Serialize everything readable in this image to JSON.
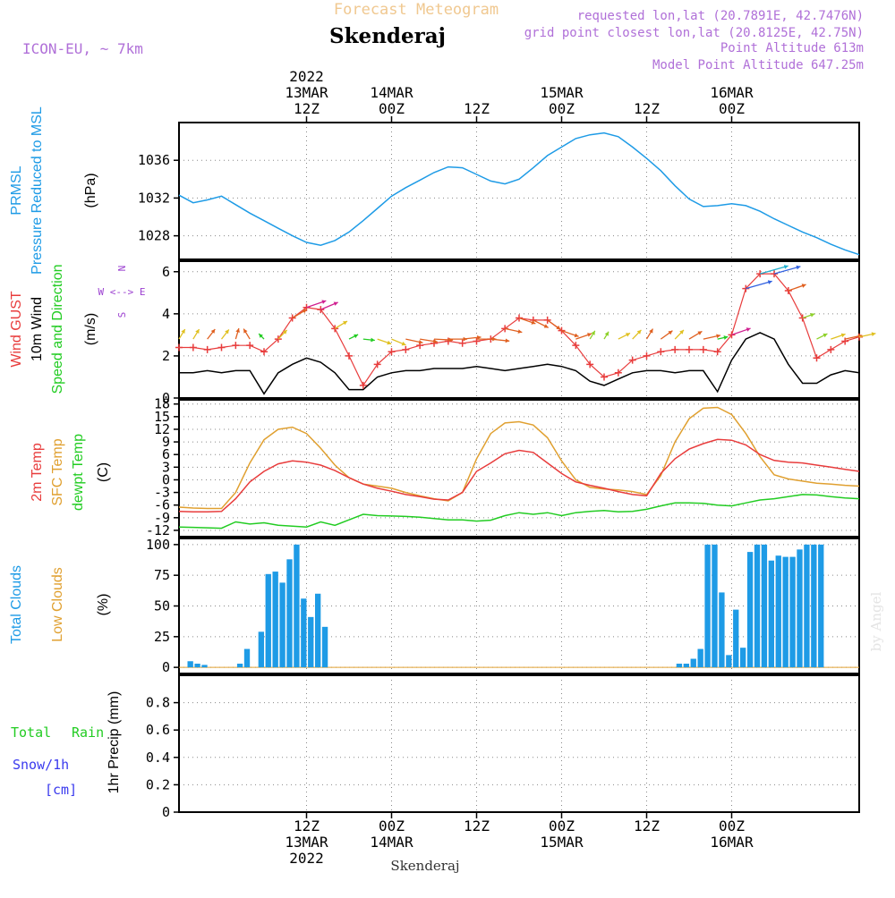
{
  "header": {
    "suptitle": "Forecast Meteogram",
    "location": "Skenderaj",
    "model": "ICON-EU, ~ 7km",
    "requested": "requested lon,lat (20.7891E, 42.7476N)",
    "gridpoint": "grid point closest lon,lat (20.8125E, 42.75N)",
    "point_alt": "Point Altitude 613m",
    "model_alt": "Model Point Altitude 647.25m",
    "footer": "Skenderaj",
    "credit": "by Angel"
  },
  "time_axis": {
    "units": "hours since 2022-03-12 18Z",
    "range": [
      0,
      96
    ],
    "top_ticks": [
      {
        "t": 18,
        "lines": [
          "2022",
          "13MAR",
          "12Z"
        ]
      },
      {
        "t": 30,
        "lines": [
          "14MAR",
          "00Z"
        ]
      },
      {
        "t": 42,
        "lines": [
          "12Z"
        ]
      },
      {
        "t": 54,
        "lines": [
          "15MAR",
          "00Z"
        ]
      },
      {
        "t": 66,
        "lines": [
          "12Z"
        ]
      },
      {
        "t": 78,
        "lines": [
          "16MAR",
          "00Z"
        ]
      }
    ],
    "bottom_ticks": [
      {
        "t": 18,
        "lines": [
          "12Z",
          "13MAR",
          "2022"
        ]
      },
      {
        "t": 30,
        "lines": [
          "00Z",
          "14MAR"
        ]
      },
      {
        "t": 42,
        "lines": [
          "12Z"
        ]
      },
      {
        "t": 54,
        "lines": [
          "00Z",
          "15MAR"
        ]
      },
      {
        "t": 66,
        "lines": [
          "12Z"
        ]
      },
      {
        "t": 78,
        "lines": [
          "00Z",
          "16MAR"
        ]
      }
    ]
  },
  "colors": {
    "pressure": "#1e9be6",
    "gust": "#e83c3c",
    "wind": "#000000",
    "direction": "#22cc22",
    "temp2m": "#e83c3c",
    "sfc": "#e0a030",
    "dewpt": "#22cc22",
    "clouds": "#1e9be6",
    "lowclouds": "#e0a030",
    "compass": "#9b3fd0",
    "snow": "#3a3aee"
  },
  "chart_data": [
    {
      "id": "pressure",
      "type": "line",
      "ylabels": [
        "PRMSL",
        "Pressure Reduced to MSL",
        "(hPa)"
      ],
      "ylim": [
        1025.5,
        1040
      ],
      "yticks": [
        1028,
        1032,
        1036
      ],
      "x": [
        0,
        2,
        4,
        6,
        8,
        10,
        12,
        14,
        16,
        18,
        20,
        22,
        24,
        26,
        28,
        30,
        32,
        34,
        36,
        38,
        40,
        42,
        44,
        46,
        48,
        50,
        52,
        54,
        56,
        58,
        60,
        62,
        64,
        66,
        68,
        70,
        72,
        74,
        76,
        78,
        80,
        82,
        84,
        86,
        88,
        90,
        92,
        94,
        96
      ],
      "values": [
        1032.3,
        1031.5,
        1031.8,
        1032.2,
        1031.3,
        1030.4,
        1029.6,
        1028.8,
        1028.0,
        1027.3,
        1027.0,
        1027.5,
        1028.4,
        1029.6,
        1030.9,
        1032.2,
        1033.1,
        1033.9,
        1034.7,
        1035.3,
        1035.2,
        1034.5,
        1033.8,
        1033.5,
        1034.0,
        1035.2,
        1036.5,
        1037.4,
        1038.3,
        1038.7,
        1038.9,
        1038.5,
        1037.4,
        1036.2,
        1034.9,
        1033.3,
        1031.9,
        1031.1,
        1031.2,
        1031.4,
        1031.2,
        1030.6,
        1029.8,
        1029.1,
        1028.4,
        1027.8,
        1027.1,
        1026.5,
        1026.0
      ]
    },
    {
      "id": "wind",
      "type": "line",
      "ylabels": [
        "Wind GUST",
        "10m Wind",
        "Speed and Direction",
        "(m/s)"
      ],
      "ylim": [
        0,
        6.5
      ],
      "yticks": [
        0,
        2,
        4,
        6
      ],
      "compass": [
        "N",
        "W <--> E",
        "S"
      ],
      "x": [
        0,
        2,
        4,
        6,
        8,
        10,
        12,
        14,
        16,
        18,
        20,
        22,
        24,
        26,
        28,
        30,
        32,
        34,
        36,
        38,
        40,
        42,
        44,
        46,
        48,
        50,
        52,
        54,
        56,
        58,
        60,
        62,
        64,
        66,
        68,
        70,
        72,
        74,
        76,
        78,
        80,
        82,
        84,
        86,
        88,
        90,
        92,
        94,
        96
      ],
      "series": [
        {
          "name": "Wind GUST",
          "values": [
            2.4,
            2.4,
            2.3,
            2.4,
            2.5,
            2.5,
            2.2,
            2.8,
            3.8,
            4.3,
            4.2,
            3.3,
            2.0,
            0.6,
            1.6,
            2.2,
            2.3,
            2.5,
            2.6,
            2.7,
            2.6,
            2.7,
            2.8,
            3.3,
            3.8,
            3.7,
            3.7,
            3.2,
            2.5,
            1.6,
            1.0,
            1.2,
            1.8,
            2.0,
            2.2,
            2.3,
            2.3,
            2.3,
            2.2,
            3.0,
            5.2,
            5.9,
            5.9,
            5.1,
            3.8,
            1.9,
            2.3,
            2.7,
            2.9
          ]
        },
        {
          "name": "10m Wind",
          "values": [
            1.2,
            1.2,
            1.3,
            1.2,
            1.3,
            1.3,
            0.2,
            1.2,
            1.6,
            1.9,
            1.7,
            1.2,
            0.4,
            0.4,
            1.0,
            1.2,
            1.3,
            1.3,
            1.4,
            1.4,
            1.4,
            1.5,
            1.4,
            1.3,
            1.4,
            1.5,
            1.6,
            1.5,
            1.3,
            0.8,
            0.6,
            0.9,
            1.2,
            1.3,
            1.3,
            1.2,
            1.3,
            1.3,
            0.3,
            1.8,
            2.8,
            3.1,
            2.8,
            1.6,
            0.7,
            0.7,
            1.1,
            1.3,
            1.2
          ]
        },
        {
          "name": "Direction",
          "values": [
            200,
            200,
            205,
            205,
            190,
            160,
            150,
            210,
            225,
            240,
            235,
            225,
            230,
            280,
            300,
            305,
            290,
            285,
            275,
            270,
            260,
            270,
            280,
            290,
            300,
            310,
            320,
            300,
            240,
            200,
            200,
            230,
            210,
            200,
            220,
            210,
            225,
            250,
            250,
            240,
            245,
            245,
            245,
            240,
            240,
            230,
            240,
            250,
            250
          ]
        }
      ]
    },
    {
      "id": "temperature",
      "type": "line",
      "ylabels": [
        "2m Temp",
        "SFC Temp",
        "dewpt Temp",
        "(C)"
      ],
      "ylim": [
        -13.5,
        19
      ],
      "yticks": [
        -12,
        -9,
        -6,
        -3,
        0,
        3,
        6,
        9,
        12,
        15,
        18
      ],
      "x": [
        0,
        2,
        4,
        6,
        8,
        10,
        12,
        14,
        16,
        18,
        20,
        22,
        24,
        26,
        28,
        30,
        32,
        34,
        36,
        38,
        40,
        42,
        44,
        46,
        48,
        50,
        52,
        54,
        56,
        58,
        60,
        62,
        64,
        66,
        68,
        70,
        72,
        74,
        76,
        78,
        80,
        82,
        84,
        86,
        88,
        90,
        92,
        94,
        96
      ],
      "series": [
        {
          "name": "2m Temp",
          "values": [
            -7.5,
            -7.6,
            -7.6,
            -7.5,
            -4.5,
            -0.5,
            2.0,
            3.8,
            4.5,
            4.2,
            3.5,
            2.2,
            0.5,
            -1.0,
            -2.0,
            -2.7,
            -3.5,
            -4.0,
            -4.6,
            -4.8,
            -3.0,
            2.0,
            4.0,
            6.2,
            7.0,
            6.5,
            4.0,
            1.5,
            -0.5,
            -1.3,
            -2.0,
            -2.8,
            -3.5,
            -3.8,
            1.5,
            5.0,
            7.3,
            8.6,
            9.6,
            9.4,
            8.3,
            6.0,
            4.6,
            4.2,
            4.0,
            3.5,
            3.0,
            2.5,
            2.0
          ]
        },
        {
          "name": "SFC Temp",
          "values": [
            -6.5,
            -6.7,
            -6.8,
            -6.8,
            -3.0,
            4.0,
            9.5,
            12.0,
            12.5,
            11.0,
            7.5,
            3.5,
            0.5,
            -1.0,
            -1.5,
            -2.0,
            -3.0,
            -3.8,
            -4.5,
            -5.0,
            -3.0,
            5.0,
            11.0,
            13.5,
            13.8,
            13.0,
            10.0,
            4.5,
            0.0,
            -1.8,
            -2.2,
            -2.4,
            -2.8,
            -3.5,
            1.0,
            9.0,
            14.5,
            17.0,
            17.2,
            15.5,
            11.0,
            5.5,
            1.2,
            0.2,
            -0.3,
            -0.8,
            -1.0,
            -1.3,
            -1.5
          ]
        },
        {
          "name": "dewpt Temp",
          "values": [
            -11.2,
            -11.3,
            -11.4,
            -11.5,
            -10.0,
            -10.5,
            -10.2,
            -10.8,
            -11.0,
            -11.2,
            -10.0,
            -10.8,
            -9.5,
            -8.2,
            -8.5,
            -8.6,
            -8.7,
            -8.9,
            -9.2,
            -9.5,
            -9.5,
            -9.8,
            -9.6,
            -8.5,
            -7.8,
            -8.2,
            -7.8,
            -8.5,
            -7.8,
            -7.5,
            -7.3,
            -7.6,
            -7.5,
            -7.0,
            -6.2,
            -5.5,
            -5.5,
            -5.6,
            -6.0,
            -6.2,
            -5.5,
            -4.8,
            -4.5,
            -4.0,
            -3.5,
            -3.6,
            -4.0,
            -4.3,
            -4.5
          ]
        }
      ]
    },
    {
      "id": "clouds",
      "type": "bar",
      "ylabels": [
        "Total Clouds",
        "Low Clouds",
        "(%)"
      ],
      "ylim": [
        -5,
        105
      ],
      "yticks": [
        0,
        25,
        50,
        75,
        100
      ],
      "x": [
        1,
        2,
        3,
        4,
        5,
        6,
        7,
        8,
        9,
        10,
        11,
        12,
        13,
        14,
        15,
        16,
        17,
        18,
        19,
        20,
        21,
        22,
        23,
        24,
        25,
        26,
        27,
        28,
        29,
        30,
        31,
        32,
        33,
        34,
        35,
        36,
        37,
        38,
        39,
        40,
        41,
        42,
        43,
        44,
        45,
        46,
        47,
        48,
        49,
        50,
        51,
        52,
        53,
        54,
        55,
        56,
        57,
        58,
        59,
        60,
        61,
        62,
        63,
        64,
        65,
        66,
        67,
        68,
        69,
        70,
        71,
        72,
        73,
        74,
        75,
        76,
        77,
        78,
        79,
        80,
        81,
        82,
        83,
        84,
        85,
        86,
        87,
        88,
        89,
        90,
        91,
        92,
        93,
        94,
        95,
        96
      ],
      "values": [
        0,
        5,
        3,
        2,
        0,
        0,
        0,
        0,
        3,
        15,
        0,
        29,
        76,
        78,
        69,
        88,
        100,
        56,
        41,
        60,
        33,
        0,
        0,
        0,
        0,
        0,
        0,
        0,
        0,
        0,
        0,
        0,
        0,
        0,
        0,
        0,
        0,
        0,
        0,
        0,
        0,
        0,
        0,
        0,
        0,
        0,
        0,
        0,
        0,
        0,
        0,
        0,
        0,
        0,
        0,
        0,
        0,
        0,
        0,
        0,
        0,
        0,
        0,
        0,
        0,
        0,
        0,
        0,
        0,
        0,
        3,
        3,
        7,
        15,
        100,
        100,
        61,
        10,
        47,
        16,
        94,
        100,
        100,
        87,
        91,
        90,
        90,
        96,
        100,
        100,
        100,
        0,
        0,
        0,
        0,
        0
      ]
    },
    {
      "id": "precip",
      "type": "line",
      "ylabels": [
        "Total",
        "Rain",
        "Snow/1h",
        "[cm]",
        "1hr Precip (mm)"
      ],
      "ylim": [
        0,
        1.0
      ],
      "yticks": [
        0,
        0.2,
        0.4,
        0.6,
        0.8
      ],
      "ytick_labels": [
        "0",
        "0.2",
        "0.4",
        "0.6",
        "0.8"
      ],
      "x": [
        0,
        96
      ],
      "values": [
        0,
        0
      ]
    }
  ]
}
